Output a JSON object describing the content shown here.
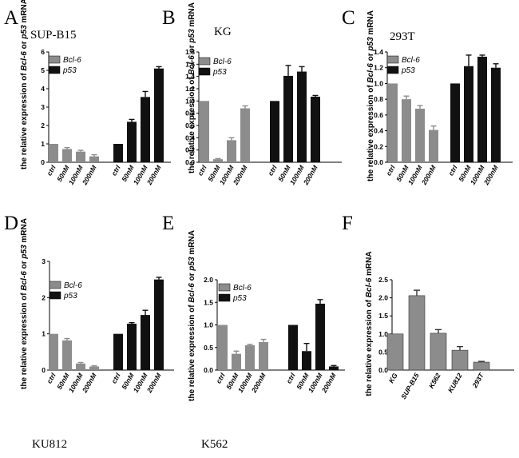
{
  "colors": {
    "bcl6": "#8c8c8c",
    "p53": "#111111",
    "axis": "#000000"
  },
  "legend_labels": [
    "Bcl-6",
    "p53"
  ],
  "chart_data": [
    {
      "panel": "A",
      "cell_line": "SUP-B15",
      "type": "bar",
      "ylabel_parts": [
        "the relative expression of ",
        "Bcl-6",
        " or ",
        "p53",
        " mRNA"
      ],
      "ylim": [
        0,
        6
      ],
      "yticks": [
        "0",
        "1",
        "2",
        "3",
        "4",
        "5",
        "6"
      ],
      "categories": [
        "ctrl",
        "50nM",
        "100nM",
        "200nM"
      ],
      "series": [
        {
          "name": "Bcl-6",
          "values": [
            1.0,
            0.72,
            0.58,
            0.32
          ],
          "errors": [
            0.0,
            0.08,
            0.07,
            0.09
          ]
        },
        {
          "name": "p53",
          "values": [
            1.0,
            2.2,
            3.55,
            5.1
          ],
          "errors": [
            0.0,
            0.13,
            0.3,
            0.1
          ]
        }
      ]
    },
    {
      "panel": "B",
      "cell_line": "KG",
      "type": "bar",
      "ylabel_parts": [
        "the relative expression of ",
        "Bcl-6",
        " or ",
        "p53",
        " mRNA"
      ],
      "ylim": [
        0,
        1.8
      ],
      "yticks": [
        "0.0",
        "0.2",
        "0.4",
        "0.6",
        "0.8",
        "1.0",
        "1.2",
        "1.4",
        "1.6",
        "1.8"
      ],
      "categories": [
        "ctrl",
        "50nM",
        "100nM",
        "200nM"
      ],
      "series": [
        {
          "name": "Bcl-6",
          "values": [
            1.0,
            0.05,
            0.36,
            0.88
          ],
          "errors": [
            0.0,
            0.01,
            0.04,
            0.04
          ]
        },
        {
          "name": "p53",
          "values": [
            1.0,
            1.41,
            1.48,
            1.07
          ],
          "errors": [
            0.0,
            0.17,
            0.08,
            0.02
          ]
        }
      ]
    },
    {
      "panel": "C",
      "cell_line": "293T",
      "type": "bar",
      "ylabel_parts": [
        "the relative expression of ",
        "Bcl-6",
        " or ",
        "p53",
        " mRNA"
      ],
      "ylim": [
        0,
        1.4
      ],
      "yticks": [
        "0.0",
        "0.2",
        "0.4",
        "0.6",
        "0.8",
        "1.0",
        "1.2",
        "1.4"
      ],
      "categories": [
        "ctrl",
        "50nM",
        "100nM",
        "200nM"
      ],
      "series": [
        {
          "name": "Bcl-6",
          "values": [
            1.0,
            0.8,
            0.68,
            0.41
          ],
          "errors": [
            0.0,
            0.04,
            0.04,
            0.05
          ]
        },
        {
          "name": "p53",
          "values": [
            1.0,
            1.22,
            1.34,
            1.2
          ],
          "errors": [
            0.0,
            0.14,
            0.02,
            0.05
          ]
        }
      ]
    },
    {
      "panel": "D",
      "cell_line": "KU812",
      "type": "bar",
      "ylabel_parts": [
        "the relative expression of ",
        "Bcl-6",
        " or ",
        "p53",
        " mRNA"
      ],
      "ylim": [
        0,
        3
      ],
      "yticks": [
        "0",
        "1",
        "2",
        "3"
      ],
      "categories": [
        "ctrl",
        "50nM",
        "100nM",
        "200nM"
      ],
      "series": [
        {
          "name": "Bcl-6",
          "values": [
            1.0,
            0.82,
            0.18,
            0.1
          ],
          "errors": [
            0.0,
            0.05,
            0.03,
            0.02
          ]
        },
        {
          "name": "p53",
          "values": [
            1.0,
            1.28,
            1.52,
            2.5
          ],
          "errors": [
            0.0,
            0.03,
            0.13,
            0.06
          ]
        }
      ]
    },
    {
      "panel": "E",
      "cell_line": "K562",
      "type": "bar",
      "ylabel_parts": [
        "the relative expression of ",
        "Bcl-6",
        " or ",
        "p53",
        " mRNA"
      ],
      "ylim": [
        0,
        2.0
      ],
      "yticks": [
        "0.0",
        "0.5",
        "1.0",
        "1.5",
        "2.0"
      ],
      "categories": [
        "ctrl",
        "50nM",
        "100nM",
        "200nM"
      ],
      "series": [
        {
          "name": "Bcl-6",
          "values": [
            1.0,
            0.36,
            0.55,
            0.62
          ],
          "errors": [
            0.0,
            0.06,
            0.02,
            0.06
          ]
        },
        {
          "name": "p53",
          "values": [
            1.0,
            0.42,
            1.47,
            0.08
          ],
          "errors": [
            0.0,
            0.17,
            0.09,
            0.02
          ]
        }
      ]
    },
    {
      "panel": "F",
      "type": "bar",
      "ylabel_parts": [
        "the relative expression of ",
        "Bcl-6",
        " mRNA"
      ],
      "ylim": [
        0,
        2.5
      ],
      "yticks": [
        "0.0",
        "0.5",
        "1.0",
        "1.5",
        "2.0",
        "2.5"
      ],
      "categories": [
        "KG",
        "SUP-B15",
        "K562",
        "KU812",
        "293T"
      ],
      "values": [
        1.0,
        2.06,
        1.02,
        0.55,
        0.22
      ],
      "errors": [
        0.0,
        0.15,
        0.1,
        0.1,
        0.02
      ]
    }
  ]
}
